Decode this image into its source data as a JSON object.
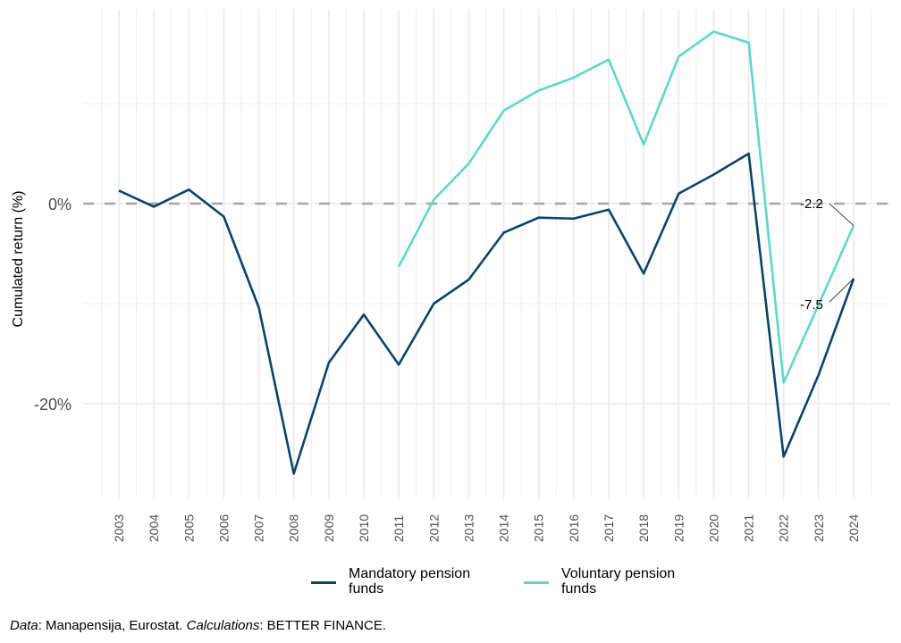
{
  "chart_data": {
    "type": "line",
    "title": "",
    "xlabel": "",
    "ylabel": "Cumulated return  (%)",
    "x": [
      "2003",
      "2004",
      "2005",
      "2006",
      "2007",
      "2008",
      "2009",
      "2010",
      "2011",
      "2012",
      "2013",
      "2014",
      "2015",
      "2016",
      "2017",
      "2018",
      "2019",
      "2020",
      "2021",
      "2022",
      "2023",
      "2024"
    ],
    "ylim": [
      -29,
      20
    ],
    "yticks": [
      0,
      -20
    ],
    "ytick_labels": [
      "0%",
      "-20%"
    ],
    "grid": true,
    "reference_line": {
      "y": 0,
      "style": "dashed",
      "color": "#a6a6a6"
    },
    "series": [
      {
        "name": "Mandatory pension funds",
        "color": "#0b4468",
        "values": [
          1.3,
          -0.3,
          1.4,
          -1.3,
          -10.4,
          -27.0,
          -15.9,
          -11.1,
          -16.1,
          -10.0,
          -7.6,
          -2.9,
          -1.4,
          -1.5,
          -0.6,
          -7.0,
          1.0,
          2.9,
          5.0,
          -25.3,
          -17.1,
          -7.5
        ]
      },
      {
        "name": "Voluntary pension funds",
        "color": "#5fd7c6",
        "values": [
          null,
          null,
          null,
          null,
          null,
          null,
          null,
          null,
          -6.3,
          0.4,
          4.0,
          9.3,
          11.3,
          12.6,
          14.4,
          5.9,
          14.7,
          17.2,
          16.1,
          -17.9,
          -10.1,
          -2.2
        ]
      }
    ],
    "annotations": [
      {
        "text": "-2.2",
        "series": "Voluntary pension funds",
        "x": "2024"
      },
      {
        "text": "-7.5",
        "series": "Mandatory pension funds",
        "x": "2024"
      }
    ],
    "legend": {
      "position": "bottom",
      "items": [
        "Mandatory pension\nfunds",
        "Voluntary pension\nfunds"
      ]
    }
  },
  "legend": {
    "mandatory_line1": "Mandatory pension",
    "mandatory_line2": "funds",
    "voluntary_line1": "Voluntary pension",
    "voluntary_line2": "funds"
  },
  "caption": {
    "data_label": "Data",
    "data_text": ": Manapensija, Eurostat. ",
    "calc_label": "Calculations",
    "calc_text": ": BETTER FINANCE."
  }
}
